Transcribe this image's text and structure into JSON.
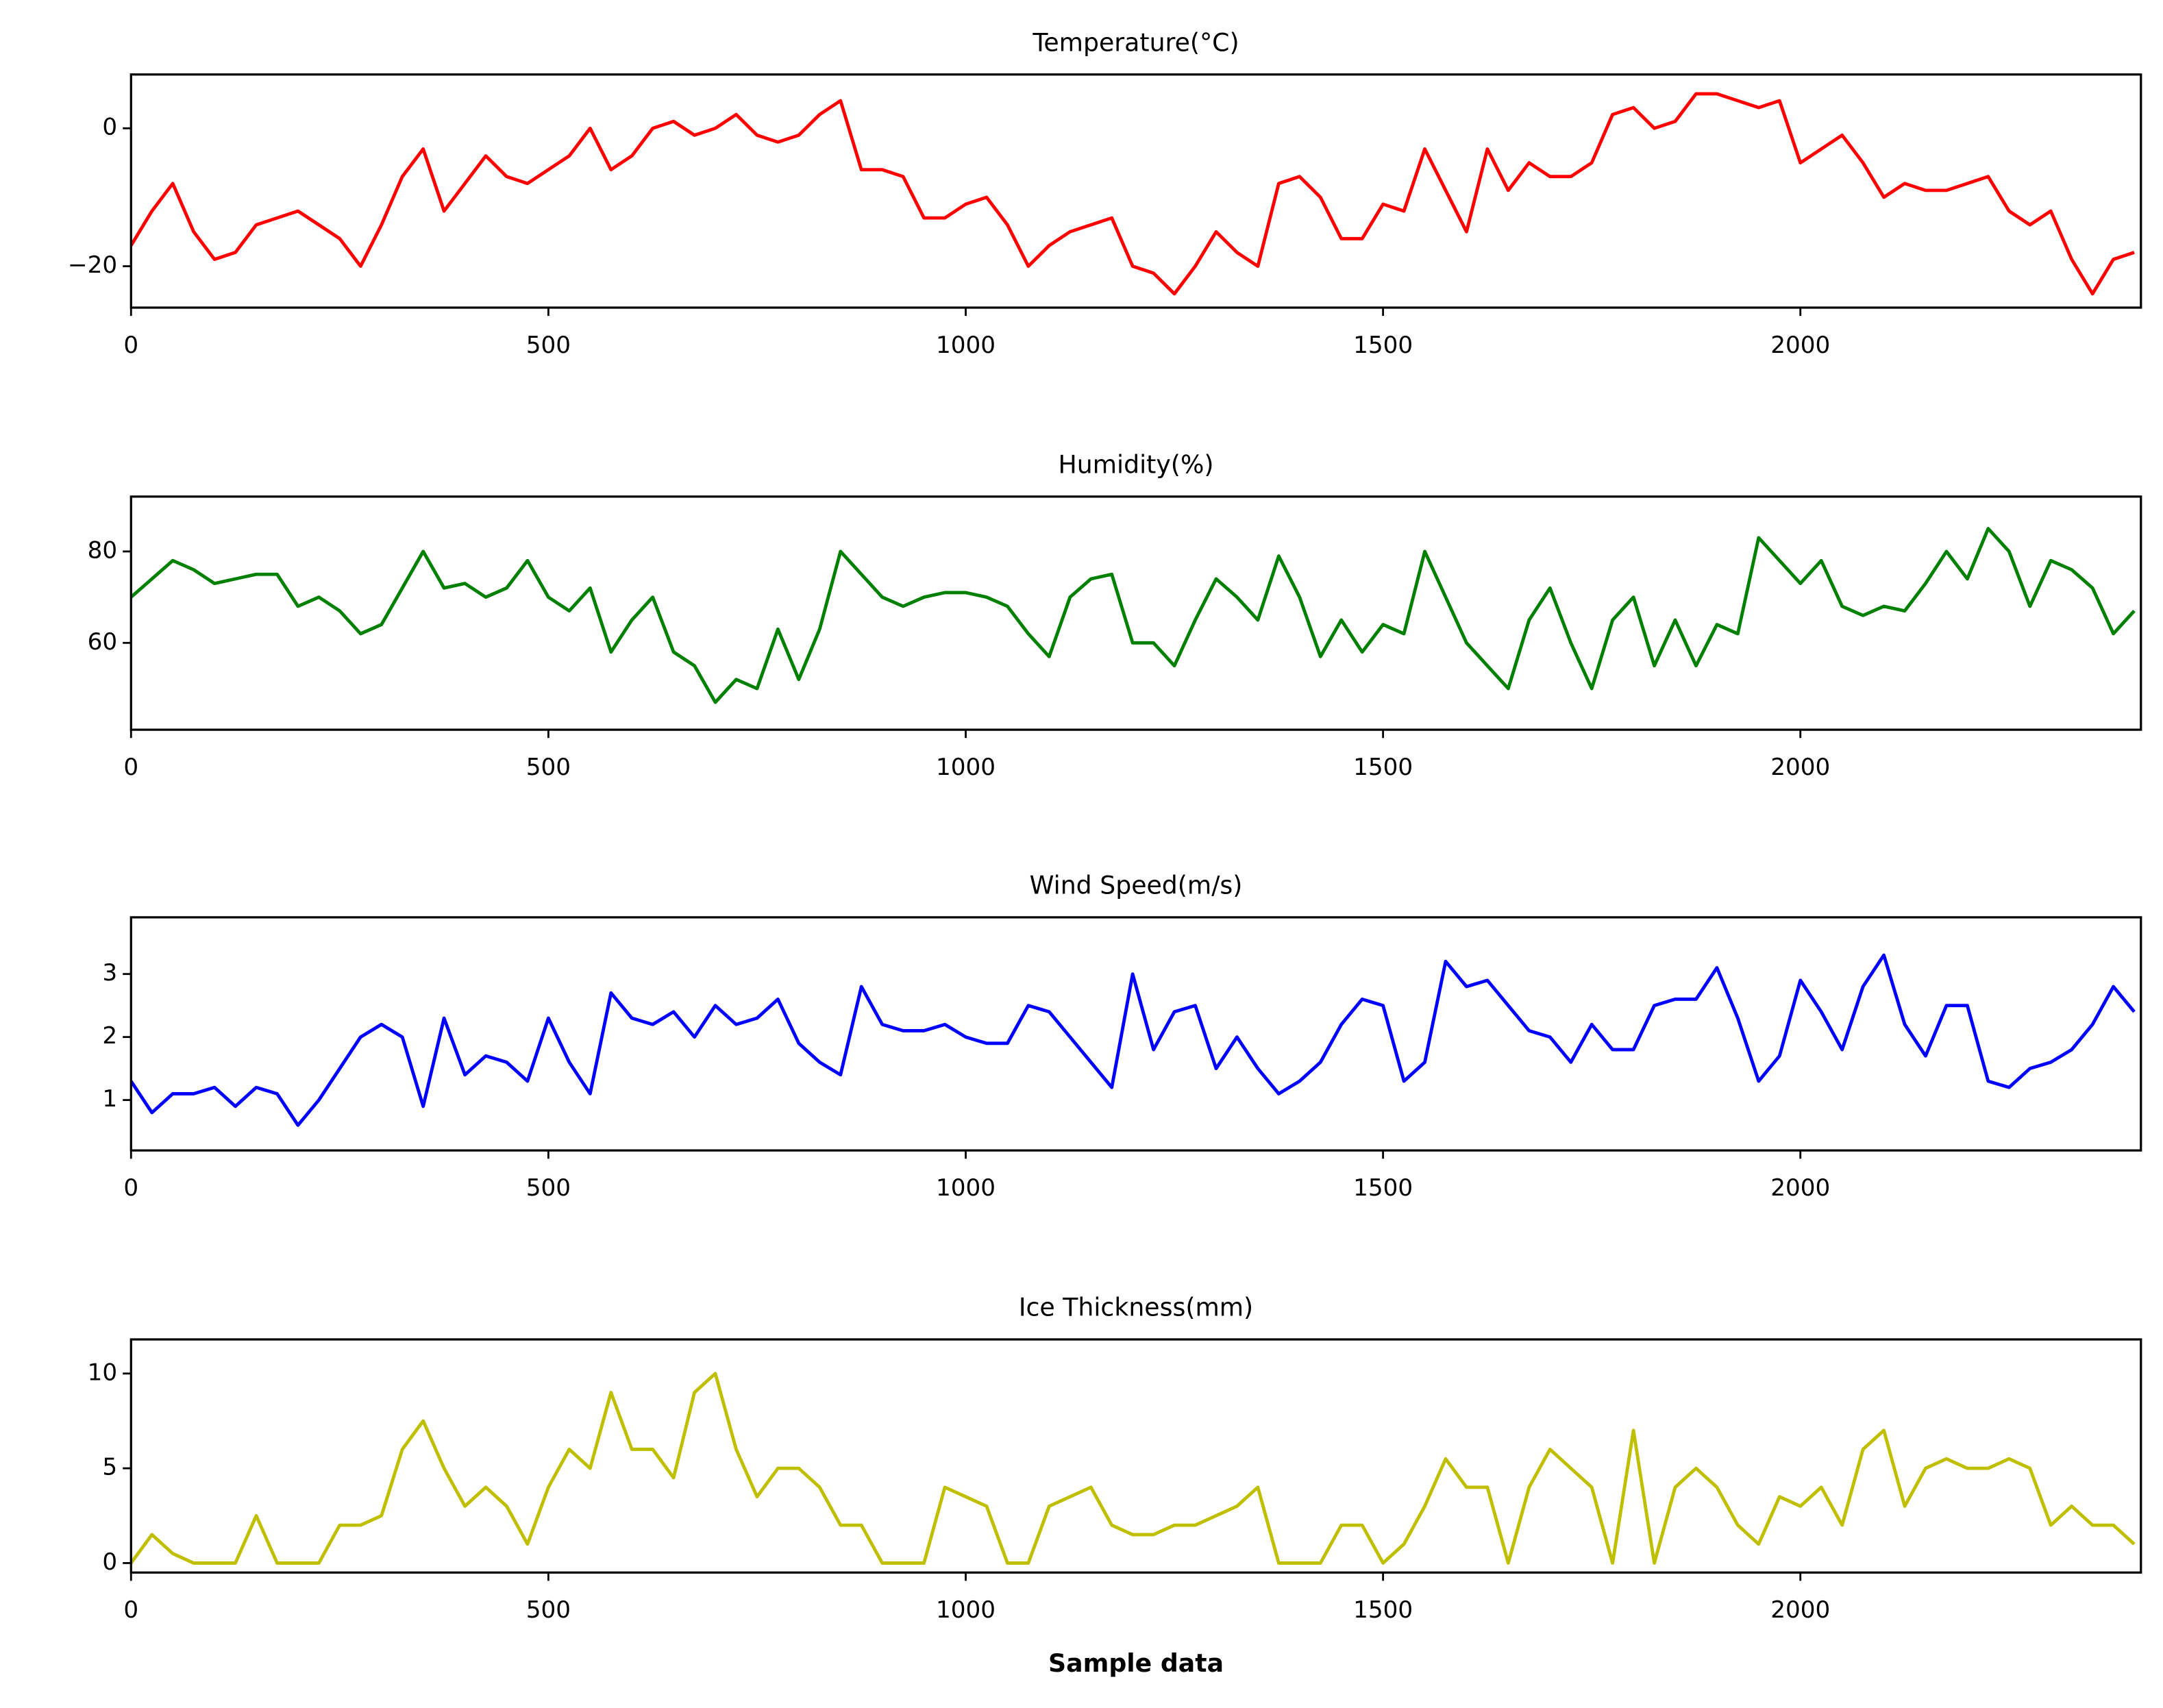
{
  "chart_data": [
    {
      "type": "line",
      "title": "Temperature(°C)",
      "color": "#ff0000",
      "x": [
        0,
        25,
        50,
        75,
        100,
        125,
        150,
        175,
        200,
        225,
        250,
        275,
        300,
        325,
        350,
        375,
        400,
        425,
        450,
        475,
        500,
        525,
        550,
        575,
        600,
        625,
        650,
        675,
        700,
        725,
        750,
        775,
        800,
        825,
        850,
        875,
        900,
        925,
        950,
        975,
        1000,
        1025,
        1050,
        1075,
        1100,
        1125,
        1150,
        1175,
        1200,
        1225,
        1250,
        1275,
        1300,
        1325,
        1350,
        1375,
        1400,
        1425,
        1450,
        1475,
        1500,
        1525,
        1550,
        1575,
        1600,
        1625,
        1650,
        1675,
        1700,
        1725,
        1750,
        1775,
        1800,
        1825,
        1850,
        1875,
        1900,
        1925,
        1950,
        1975,
        2000,
        2025,
        2050,
        2075,
        2100,
        2125,
        2150,
        2175,
        2200,
        2225,
        2250,
        2275,
        2300,
        2325,
        2350,
        2375,
        2400
      ],
      "values": [
        -17,
        -12,
        -8,
        -15,
        -19,
        -18,
        -14,
        -13,
        -12,
        -14,
        -16,
        -20,
        -14,
        -7,
        -3,
        -12,
        -8,
        -4,
        -7,
        -8,
        -6,
        -4,
        0,
        -6,
        -4,
        0,
        1,
        -1,
        0,
        2,
        -1,
        -2,
        -1,
        2,
        4,
        -6,
        -6,
        -7,
        -13,
        -13,
        -11,
        -10,
        -14,
        -20,
        -17,
        -15,
        -14,
        -13,
        -20,
        -21,
        -24,
        -20,
        -15,
        -18,
        -20,
        -8,
        -7,
        -10,
        -16,
        -16,
        -11,
        -12,
        -3,
        -9,
        -15,
        -3,
        -9,
        -5,
        -7,
        -7,
        -5,
        2,
        3,
        0,
        1,
        5,
        5,
        4,
        3,
        4,
        -5,
        -3,
        -1,
        -5,
        -10,
        -8,
        -9,
        -9,
        -8,
        -7,
        -12,
        -14,
        -12,
        -19,
        -24,
        -19,
        -18
      ],
      "xlim": [
        0,
        2408
      ],
      "ylim": [
        -26,
        7.8
      ],
      "xticks": [
        0,
        500,
        1000,
        1500,
        2000
      ],
      "yticks": [
        {
          "value": -20,
          "label": "−20"
        },
        0
      ]
    },
    {
      "type": "line",
      "title": "Humidity(%)",
      "color": "#008000",
      "x": [
        0,
        25,
        50,
        75,
        100,
        125,
        150,
        175,
        200,
        225,
        250,
        275,
        300,
        325,
        350,
        375,
        400,
        425,
        450,
        475,
        500,
        525,
        550,
        575,
        600,
        625,
        650,
        675,
        700,
        725,
        750,
        775,
        800,
        825,
        850,
        875,
        900,
        925,
        950,
        975,
        1000,
        1025,
        1050,
        1075,
        1100,
        1125,
        1150,
        1175,
        1200,
        1225,
        1250,
        1275,
        1300,
        1325,
        1350,
        1375,
        1400,
        1425,
        1450,
        1475,
        1500,
        1525,
        1550,
        1575,
        1600,
        1625,
        1650,
        1675,
        1700,
        1725,
        1750,
        1775,
        1800,
        1825,
        1850,
        1875,
        1900,
        1925,
        1950,
        1975,
        2000,
        2025,
        2050,
        2075,
        2100,
        2125,
        2150,
        2175,
        2200,
        2225,
        2250,
        2275,
        2300,
        2325,
        2350,
        2375,
        2400
      ],
      "values": [
        70,
        74,
        78,
        76,
        73,
        74,
        75,
        75,
        68,
        70,
        67,
        62,
        64,
        72,
        80,
        72,
        73,
        70,
        72,
        78,
        70,
        67,
        72,
        58,
        65,
        70,
        58,
        55,
        47,
        52,
        50,
        63,
        52,
        63,
        80,
        75,
        70,
        68,
        70,
        71,
        71,
        70,
        68,
        62,
        57,
        70,
        74,
        75,
        60,
        60,
        55,
        65,
        74,
        70,
        65,
        79,
        70,
        57,
        65,
        58,
        64,
        62,
        80,
        70,
        60,
        55,
        50,
        65,
        72,
        60,
        50,
        65,
        70,
        55,
        65,
        55,
        64,
        62,
        83,
        78,
        73,
        78,
        68,
        66,
        68,
        67,
        73,
        80,
        74,
        85,
        80,
        68,
        78,
        76,
        72,
        62,
        67
      ],
      "xlim": [
        0,
        2408
      ],
      "ylim": [
        41,
        92
      ],
      "xticks": [
        0,
        500,
        1000,
        1500,
        2000
      ],
      "yticks": [
        60,
        80
      ]
    },
    {
      "type": "line",
      "title": "Wind Speed(m/s)",
      "color": "#0000ff",
      "x": [
        0,
        25,
        50,
        75,
        100,
        125,
        150,
        175,
        200,
        225,
        250,
        275,
        300,
        325,
        350,
        375,
        400,
        425,
        450,
        475,
        500,
        525,
        550,
        575,
        600,
        625,
        650,
        675,
        700,
        725,
        750,
        775,
        800,
        825,
        850,
        875,
        900,
        925,
        950,
        975,
        1000,
        1025,
        1050,
        1075,
        1100,
        1125,
        1150,
        1175,
        1200,
        1225,
        1250,
        1275,
        1300,
        1325,
        1350,
        1375,
        1400,
        1425,
        1450,
        1475,
        1500,
        1525,
        1550,
        1575,
        1600,
        1625,
        1650,
        1675,
        1700,
        1725,
        1750,
        1775,
        1800,
        1825,
        1850,
        1875,
        1900,
        1925,
        1950,
        1975,
        2000,
        2025,
        2050,
        2075,
        2100,
        2125,
        2150,
        2175,
        2200,
        2225,
        2250,
        2275,
        2300,
        2325,
        2350,
        2375,
        2400
      ],
      "values": [
        1.3,
        0.8,
        1.1,
        1.1,
        1.2,
        0.9,
        1.2,
        1.1,
        0.6,
        1.0,
        1.5,
        2.0,
        2.2,
        2.0,
        0.9,
        2.3,
        1.4,
        1.7,
        1.6,
        1.3,
        2.3,
        1.6,
        1.1,
        2.7,
        2.3,
        2.2,
        2.4,
        2.0,
        2.5,
        2.2,
        2.3,
        2.6,
        1.9,
        1.6,
        1.4,
        2.8,
        2.2,
        2.1,
        2.1,
        2.2,
        2.0,
        1.9,
        1.9,
        2.5,
        2.4,
        2.0,
        1.6,
        1.2,
        3.0,
        1.8,
        2.4,
        2.5,
        1.5,
        2.0,
        1.5,
        1.1,
        1.3,
        1.6,
        2.2,
        2.6,
        2.5,
        1.3,
        1.6,
        3.2,
        2.8,
        2.9,
        2.5,
        2.1,
        2.0,
        1.6,
        2.2,
        1.8,
        1.8,
        2.5,
        2.6,
        2.6,
        3.1,
        2.3,
        1.3,
        1.7,
        2.9,
        2.4,
        1.8,
        2.8,
        3.3,
        2.2,
        1.7,
        2.5,
        2.5,
        1.3,
        1.2,
        1.5,
        1.6,
        1.8,
        2.2,
        2.8,
        2.4
      ],
      "xlim": [
        0,
        2408
      ],
      "ylim": [
        0.2,
        3.9
      ],
      "xticks": [
        0,
        500,
        1000,
        1500,
        2000
      ],
      "yticks": [
        1,
        2,
        3
      ]
    },
    {
      "type": "line",
      "title": "Ice Thickness(mm)",
      "color": "#bfbf00",
      "xlabel": "Sample data",
      "x": [
        0,
        25,
        50,
        75,
        100,
        125,
        150,
        175,
        200,
        225,
        250,
        275,
        300,
        325,
        350,
        375,
        400,
        425,
        450,
        475,
        500,
        525,
        550,
        575,
        600,
        625,
        650,
        675,
        700,
        725,
        750,
        775,
        800,
        825,
        850,
        875,
        900,
        925,
        950,
        975,
        1000,
        1025,
        1050,
        1075,
        1100,
        1125,
        1150,
        1175,
        1200,
        1225,
        1250,
        1275,
        1300,
        1325,
        1350,
        1375,
        1400,
        1425,
        1450,
        1475,
        1500,
        1525,
        1550,
        1575,
        1600,
        1625,
        1650,
        1675,
        1700,
        1725,
        1750,
        1775,
        1800,
        1825,
        1850,
        1875,
        1900,
        1925,
        1950,
        1975,
        2000,
        2025,
        2050,
        2075,
        2100,
        2125,
        2150,
        2175,
        2200,
        2225,
        2250,
        2275,
        2300,
        2325,
        2350,
        2375,
        2400
      ],
      "values": [
        0,
        1.5,
        0.5,
        0,
        0,
        0,
        2.5,
        0,
        0,
        0,
        2,
        2,
        2.5,
        6,
        7.5,
        5,
        3,
        4,
        3,
        1,
        4,
        6,
        5,
        9,
        6,
        6,
        4.5,
        9,
        10,
        6,
        3.5,
        5,
        5,
        4,
        2,
        2,
        0,
        0,
        0,
        4,
        3.5,
        3,
        0,
        0,
        3,
        3.5,
        4,
        2,
        1.5,
        1.5,
        2,
        2,
        2.5,
        3,
        4,
        0,
        0,
        0,
        2,
        2,
        0,
        1,
        3,
        5.5,
        4,
        4,
        0,
        4,
        6,
        5,
        4,
        0,
        7,
        0,
        4,
        5,
        4,
        2,
        1,
        3.5,
        3,
        4,
        2,
        6,
        7,
        3,
        5,
        5.5,
        5,
        5,
        5.5,
        5,
        2,
        3,
        2,
        2,
        1
      ],
      "xlim": [
        0,
        2408
      ],
      "ylim": [
        -0.5,
        11.8
      ],
      "xticks": [
        0,
        500,
        1000,
        1500,
        2000
      ],
      "yticks": [
        0,
        5,
        10
      ]
    }
  ]
}
